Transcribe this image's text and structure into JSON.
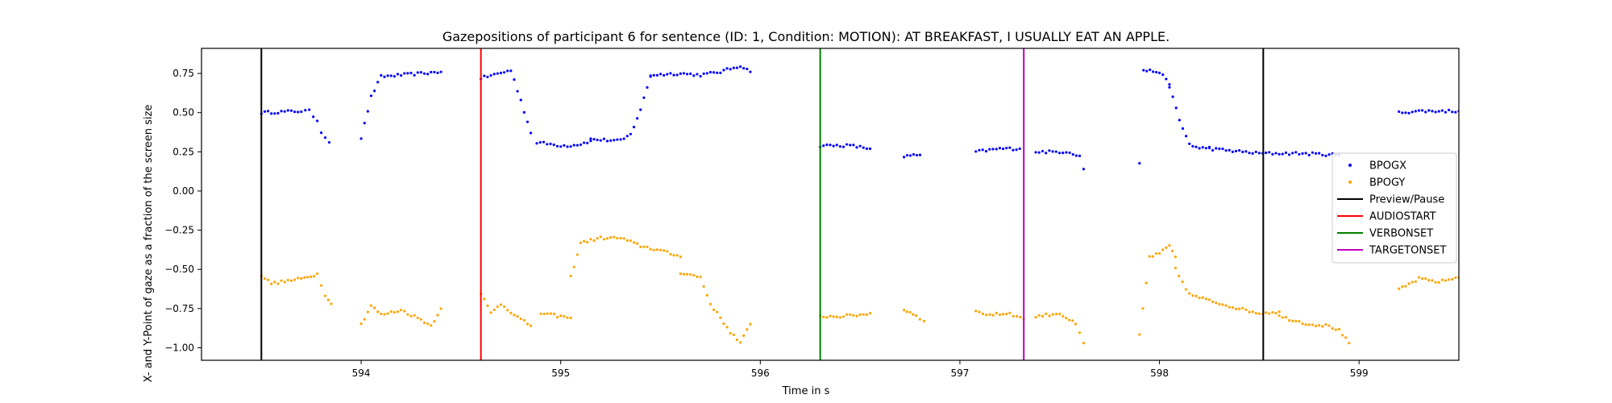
{
  "chart_data": {
    "type": "scatter",
    "title": "Gazepositions of participant 6 for sentence (ID: 1, Condition: MOTION):   AT BREAKFAST, I USUALLY EAT AN APPLE.",
    "xlabel": "Time in s",
    "ylabel": "X- and Y-Point of gaze as a fraction of the screen size",
    "xlim": [
      593.2,
      599.5
    ],
    "ylim": [
      -1.08,
      0.91
    ],
    "x_ticks": [
      594,
      595,
      596,
      597,
      598,
      599
    ],
    "x_tick_labels": [
      "594",
      "595",
      "596",
      "597",
      "598",
      "599"
    ],
    "y_ticks": [
      0.75,
      0.5,
      0.25,
      0.0,
      -0.25,
      -0.5,
      -0.75,
      -1.0
    ],
    "y_tick_labels": [
      "0.75",
      "0.50",
      "0.25",
      "0.00",
      "−0.25",
      "−0.50",
      "−0.75",
      "−1.00"
    ],
    "grid": false,
    "legend_position": "center-right",
    "series": [
      {
        "name": "BPOGX",
        "kind": "scatter",
        "color": "#0000ff",
        "segments": [
          {
            "x": [
              593.5,
              593.7,
              593.74,
              593.78,
              593.8,
              593.84
            ],
            "y": [
              0.5,
              0.51,
              0.51,
              0.45,
              0.38,
              0.31
            ]
          },
          {
            "x": [
              594.0,
              594.05,
              594.1,
              594.4
            ],
            "y": [
              0.34,
              0.6,
              0.73,
              0.76
            ]
          },
          {
            "x": [
              594.6,
              594.75,
              594.8,
              594.85
            ],
            "y": [
              0.72,
              0.77,
              0.58,
              0.37
            ]
          },
          {
            "x": [
              594.88,
              595.0,
              595.05,
              595.1,
              595.15
            ],
            "y": [
              0.31,
              0.29,
              0.29,
              0.3,
              0.32
            ]
          },
          {
            "x": [
              595.15,
              595.3,
              595.35,
              595.4,
              595.45
            ],
            "y": [
              0.33,
              0.32,
              0.36,
              0.52,
              0.73
            ]
          },
          {
            "x": [
              595.45,
              595.6,
              595.7,
              595.8,
              595.9,
              595.95
            ],
            "y": [
              0.74,
              0.75,
              0.74,
              0.76,
              0.8,
              0.76
            ]
          },
          {
            "x": [
              596.3,
              596.45,
              596.55
            ],
            "y": [
              0.29,
              0.29,
              0.27
            ]
          },
          {
            "x": [
              596.72,
              596.8
            ],
            "y": [
              0.22,
              0.23
            ]
          },
          {
            "x": [
              597.08,
              597.2,
              597.3
            ],
            "y": [
              0.25,
              0.27,
              0.27
            ]
          },
          {
            "x": [
              597.38,
              597.55,
              597.6,
              597.62
            ],
            "y": [
              0.25,
              0.25,
              0.22,
              0.14
            ]
          },
          {
            "x": [
              597.9,
              597.92,
              598.0,
              598.05
            ],
            "y": [
              0.18,
              0.77,
              0.76,
              0.68
            ]
          },
          {
            "x": [
              598.05,
              598.1,
              598.15,
              598.2,
              598.25
            ],
            "y": [
              0.67,
              0.45,
              0.3,
              0.27,
              0.28
            ]
          },
          {
            "x": [
              598.25,
              598.5,
              598.7,
              598.9
            ],
            "y": [
              0.27,
              0.24,
              0.24,
              0.23
            ]
          },
          {
            "x": [
              599.2,
              599.3,
              599.5
            ],
            "y": [
              0.5,
              0.51,
              0.51
            ]
          }
        ]
      },
      {
        "name": "BPOGY",
        "kind": "scatter",
        "color": "#ffa500",
        "segments": [
          {
            "x": [
              593.5,
              593.55,
              593.7,
              593.78,
              593.82,
              593.85
            ],
            "y": [
              -0.54,
              -0.59,
              -0.56,
              -0.53,
              -0.66,
              -0.72
            ]
          },
          {
            "x": [
              594.0,
              594.05,
              594.1,
              594.2,
              594.3,
              594.35,
              594.4
            ],
            "y": [
              -0.85,
              -0.73,
              -0.79,
              -0.76,
              -0.82,
              -0.86,
              -0.75
            ]
          },
          {
            "x": [
              594.6,
              594.65,
              594.7,
              594.8,
              594.85
            ],
            "y": [
              -0.65,
              -0.78,
              -0.72,
              -0.82,
              -0.86
            ]
          },
          {
            "x": [
              594.9,
              595.0,
              595.05
            ],
            "y": [
              -0.78,
              -0.8,
              -0.81
            ]
          },
          {
            "x": [
              595.05,
              595.1,
              595.2,
              595.3,
              595.4,
              595.5,
              595.6
            ],
            "y": [
              -0.55,
              -0.33,
              -0.3,
              -0.3,
              -0.35,
              -0.38,
              -0.42
            ]
          },
          {
            "x": [
              595.6,
              595.7,
              595.75,
              595.85,
              595.9,
              595.95
            ],
            "y": [
              -0.52,
              -0.55,
              -0.72,
              -0.9,
              -0.97,
              -0.85
            ]
          },
          {
            "x": [
              596.3,
              596.4,
              596.5,
              596.55
            ],
            "y": [
              -0.8,
              -0.8,
              -0.79,
              -0.78
            ]
          },
          {
            "x": [
              596.72,
              596.78,
              596.82
            ],
            "y": [
              -0.76,
              -0.79,
              -0.83
            ]
          },
          {
            "x": [
              597.08,
              597.15,
              597.25,
              597.32
            ],
            "y": [
              -0.77,
              -0.79,
              -0.78,
              -0.82
            ]
          },
          {
            "x": [
              597.38,
              597.5,
              597.58,
              597.62
            ],
            "y": [
              -0.8,
              -0.78,
              -0.85,
              -0.97
            ]
          },
          {
            "x": [
              597.9,
              597.95,
              598.0,
              598.05,
              598.08
            ],
            "y": [
              -0.92,
              -0.42,
              -0.4,
              -0.35,
              -0.42
            ]
          },
          {
            "x": [
              598.08,
              598.15,
              598.25,
              598.4,
              598.5,
              598.6
            ],
            "y": [
              -0.5,
              -0.66,
              -0.7,
              -0.75,
              -0.78,
              -0.77
            ]
          },
          {
            "x": [
              598.6,
              598.75,
              598.85,
              598.9,
              598.95
            ],
            "y": [
              -0.8,
              -0.85,
              -0.86,
              -0.89,
              -0.97
            ]
          },
          {
            "x": [
              599.2,
              599.3,
              599.4,
              599.5
            ],
            "y": [
              -0.63,
              -0.56,
              -0.58,
              -0.55
            ]
          }
        ]
      }
    ],
    "vertical_lines": [
      {
        "name": "Preview/Pause",
        "x": 593.5,
        "color": "#000000"
      },
      {
        "name": "AUDIOSTART",
        "x": 594.6,
        "color": "#ff0000"
      },
      {
        "name": "VERBONSET",
        "x": 596.3,
        "color": "#008000"
      },
      {
        "name": "TARGETONSET",
        "x": 597.32,
        "color": "#bf00bf"
      },
      {
        "name": "Preview/Pause",
        "x": 598.52,
        "color": "#000000"
      }
    ],
    "legend": [
      {
        "label": "BPOGX",
        "kind": "marker",
        "color": "#0000ff"
      },
      {
        "label": "BPOGY",
        "kind": "marker",
        "color": "#ffa500"
      },
      {
        "label": "Preview/Pause",
        "kind": "line",
        "color": "#000000"
      },
      {
        "label": "AUDIOSTART",
        "kind": "line",
        "color": "#ff0000"
      },
      {
        "label": "VERBONSET",
        "kind": "line",
        "color": "#008000"
      },
      {
        "label": "TARGETONSET",
        "kind": "line",
        "color": "#bf00bf"
      }
    ]
  }
}
